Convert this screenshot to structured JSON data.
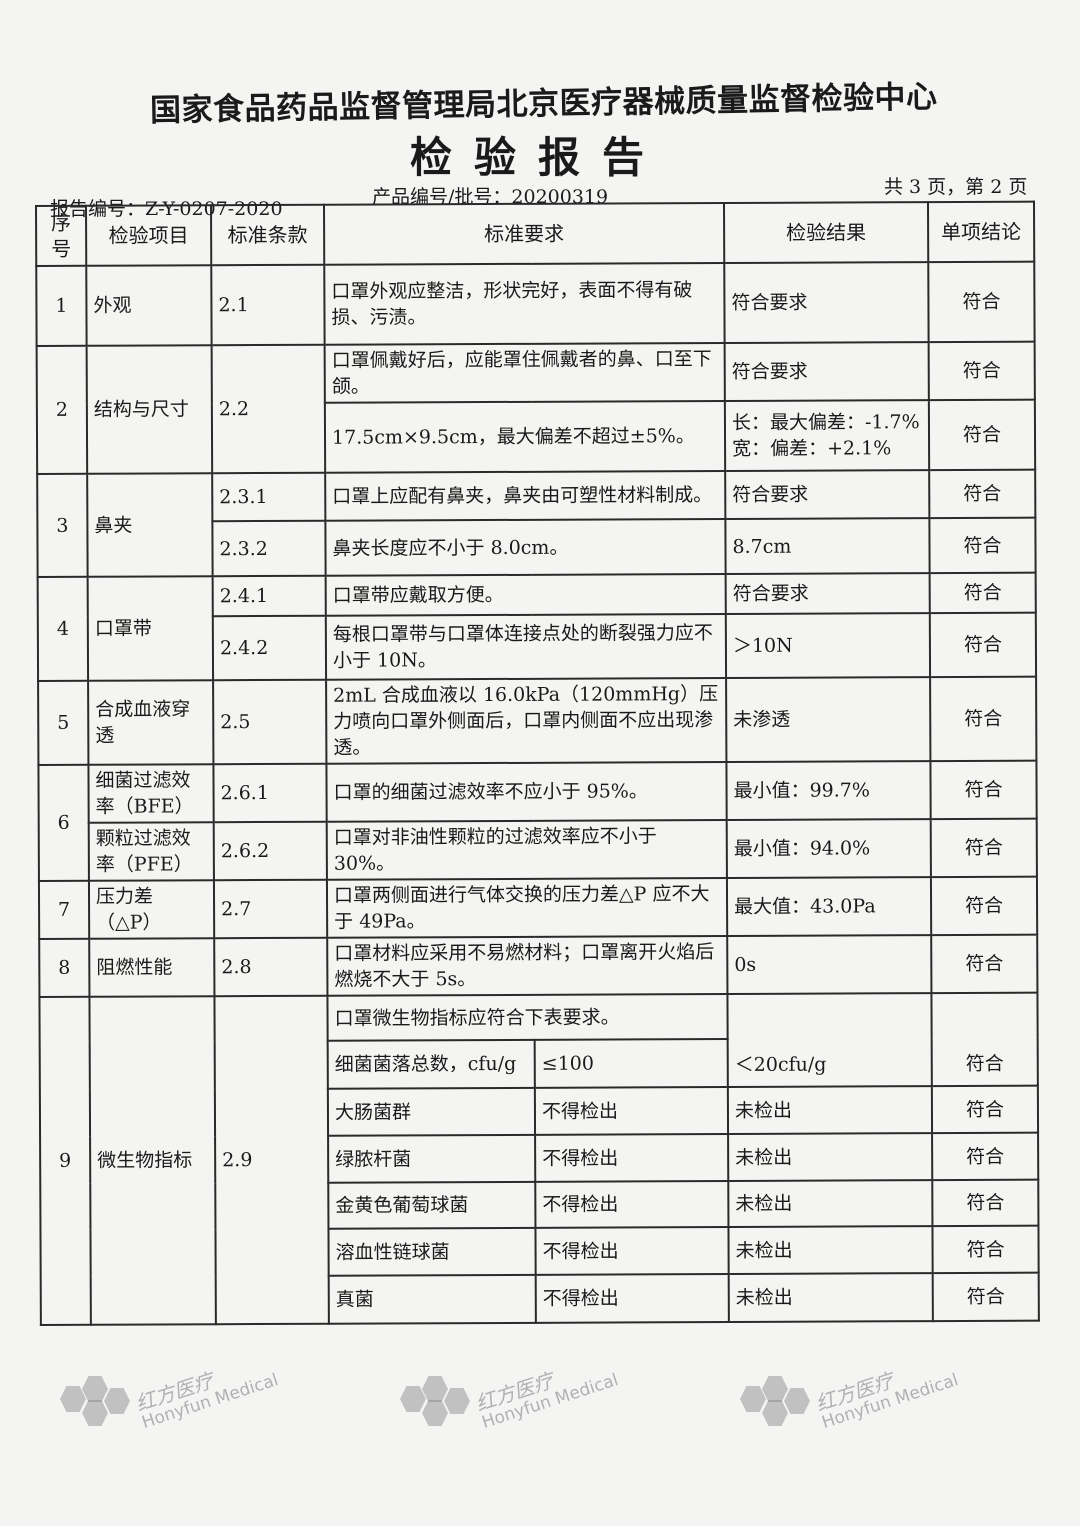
{
  "header": {
    "organization": "国家食品药品监督管理局北京医疗器械质量监督检验中心",
    "title": "检验报告",
    "report_no": "报告编号：Z-Y-0207-2020",
    "product_no": "产品编号/批号：20200319",
    "pages": "共 3 页，第 2 页"
  },
  "columns": [
    "序号",
    "检验项目",
    "标准条款",
    "标准要求",
    "检验结果",
    "单项结论"
  ],
  "rows": {
    "r1": {
      "no": "1",
      "item": "外观",
      "clause": "2.1",
      "req": "口罩外观应整洁，形状完好，表面不得有破损、污渍。",
      "result": "符合要求",
      "concl": "符合"
    },
    "r2": {
      "no": "2",
      "item": "结构与尺寸",
      "clause": "2.2",
      "req_a": "口罩佩戴好后，应能罩住佩戴者的鼻、口至下颌。",
      "result_a": "符合要求",
      "concl_a": "符合",
      "req_b": "17.5cm×9.5cm，最大偏差不超过±5%。",
      "result_b1": "长：最大偏差：-1.7%",
      "result_b2": "宽：偏差：+2.1%",
      "concl_b": "符合"
    },
    "r3": {
      "no": "3",
      "item": "鼻夹",
      "clause_a": "2.3.1",
      "req_a": "口罩上应配有鼻夹，鼻夹由可塑性材料制成。",
      "result_a": "符合要求",
      "concl_a": "符合",
      "clause_b": "2.3.2",
      "req_b": "鼻夹长度应不小于 8.0cm。",
      "result_b": "8.7cm",
      "concl_b": "符合"
    },
    "r4": {
      "no": "4",
      "item": "口罩带",
      "clause_a": "2.4.1",
      "req_a": "口罩带应戴取方便。",
      "result_a": "符合要求",
      "concl_a": "符合",
      "clause_b": "2.4.2",
      "req_b": "每根口罩带与口罩体连接点处的断裂强力应不小于 10N。",
      "result_b": "＞10N",
      "concl_b": "符合"
    },
    "r5": {
      "no": "5",
      "item": "合成血液穿透",
      "clause": "2.5",
      "req": "2mL 合成血液以 16.0kPa（120mmHg）压力喷向口罩外侧面后，口罩内侧面不应出现渗透。",
      "result": "未渗透",
      "concl": "符合"
    },
    "r6": {
      "no": "6",
      "item_a": "细菌过滤效率（BFE）",
      "clause_a": "2.6.1",
      "req_a": "口罩的细菌过滤效率不应小于 95%。",
      "result_a": "最小值：99.7%",
      "concl_a": "符合",
      "item_b": "颗粒过滤效率（PFE）",
      "clause_b": "2.6.2",
      "req_b": "口罩对非油性颗粒的过滤效率应不小于 30%。",
      "result_b": "最小值：94.0%",
      "concl_b": "符合"
    },
    "r7": {
      "no": "7",
      "item": "压力差（△P）",
      "clause": "2.7",
      "req": "口罩两侧面进行气体交换的压力差△P 应不大于 49Pa。",
      "result": "最大值：43.0Pa",
      "concl": "符合"
    },
    "r8": {
      "no": "8",
      "item": "阻燃性能",
      "clause": "2.8",
      "req": "口罩材料应采用不易燃材料；口罩离开火焰后燃烧不大于 5s。",
      "result": "0s",
      "concl": "符合"
    },
    "r9": {
      "no": "9",
      "item": "微生物指标",
      "clause": "2.9",
      "req": "口罩微生物指标应符合下表要求。",
      "sub": [
        {
          "name": "细菌菌落总数，cfu/g",
          "limit": "≤100",
          "result": "＜20cfu/g",
          "concl": "符合"
        },
        {
          "name": "大肠菌群",
          "limit": "不得检出",
          "result": "未检出",
          "concl": "符合"
        },
        {
          "name": "绿脓杆菌",
          "limit": "不得检出",
          "result": "未检出",
          "concl": "符合"
        },
        {
          "name": "金黄色葡萄球菌",
          "limit": "不得检出",
          "result": "未检出",
          "concl": "符合"
        },
        {
          "name": "溶血性链球菌",
          "limit": "不得检出",
          "result": "未检出",
          "concl": "符合"
        },
        {
          "name": "真菌",
          "limit": "不得检出",
          "result": "未检出",
          "concl": "符合"
        }
      ]
    }
  },
  "watermark": {
    "cn": "红方医疗",
    "en": "Honyfun Medical"
  }
}
